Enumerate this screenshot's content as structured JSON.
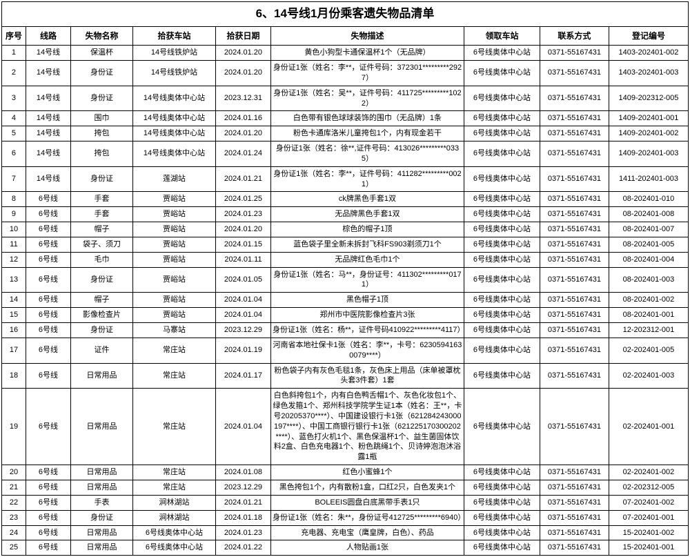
{
  "title": "6、14号线1月份乘客遗失物品清单",
  "columns": [
    "序号",
    "线路",
    "失物名称",
    "拾获车站",
    "拾获日期",
    "失物描述",
    "领取车站",
    "联系方式",
    "登记编号"
  ],
  "rows": [
    [
      "1",
      "14号线",
      "保温杯",
      "14号线铁炉站",
      "2024.01.20",
      "黄色小狗型卡通保温杯1个（无品牌）",
      "6号线奥体中心站",
      "0371-55167431",
      "1403-202401-002"
    ],
    [
      "2",
      "14号线",
      "身份证",
      "14号线铁炉站",
      "2024.01.20",
      "身份证1张（姓名：李**，证件号码：372301*********2927）",
      "6号线奥体中心站",
      "0371-55167431",
      "1403-202401-003"
    ],
    [
      "3",
      "14号线",
      "身份证",
      "14号线奥体中心站",
      "2023.12.31",
      "身份证1张（姓名：吴**，证件号码：411725*********1022）",
      "6号线奥体中心站",
      "0371-55167431",
      "1409-202312-005"
    ],
    [
      "4",
      "14号线",
      "围巾",
      "14号线奥体中心站",
      "2024.01.16",
      "白色带有银色球球装饰的围巾（无品牌）1条",
      "6号线奥体中心站",
      "0371-55167431",
      "1409-202401-001"
    ],
    [
      "5",
      "14号线",
      "挎包",
      "14号线奥体中心站",
      "2024.01.20",
      "粉色卡通库洛米儿童挎包1个，内有现金若干",
      "6号线奥体中心站",
      "0371-55167431",
      "1409-202401-002"
    ],
    [
      "6",
      "14号线",
      "挎包",
      "14号线奥体中心站",
      "2024.01.24",
      "身份证1张（姓名：徐**,证件号码：413026*********0335）",
      "6号线奥体中心站",
      "0371-55167431",
      "1409-202401-003"
    ],
    [
      "7",
      "14号线",
      "身份证",
      "莲湖站",
      "2024.01.21",
      "身份证1张（姓名：李**，证件号码：411282*********0021）",
      "6号线奥体中心站",
      "0371-55167431",
      "1411-202401-003"
    ],
    [
      "8",
      "6号线",
      "手套",
      "贾峪站",
      "2024.01.25",
      "ck牌黑色手套1双",
      "6号线奥体中心站",
      "0371-55167431",
      "08-202401-010"
    ],
    [
      "9",
      "6号线",
      "手套",
      "贾峪站",
      "2024.01.23",
      "无品牌黑色手套1双",
      "6号线奥体中心站",
      "0371-55167431",
      "08-202401-008"
    ],
    [
      "10",
      "6号线",
      "帽子",
      "贾峪站",
      "2024.01.20",
      "棕色的帽子1顶",
      "6号线奥体中心站",
      "0371-55167431",
      "08-202401-007"
    ],
    [
      "11",
      "6号线",
      "袋子、须刀",
      "贾峪站",
      "2024.01.15",
      "蓝色袋子里全新未拆封飞科FS903剃须刀1个",
      "6号线奥体中心站",
      "0371-55167431",
      "08-202401-005"
    ],
    [
      "12",
      "6号线",
      "毛巾",
      "贾峪站",
      "2024.01.11",
      "无品牌红色毛巾1个",
      "6号线奥体中心站",
      "0371-55167431",
      "08-202401-004"
    ],
    [
      "13",
      "6号线",
      "身份证",
      "贾峪站",
      "2024.01.05",
      "身份证1张（姓名：马**，身份证号：411302*********0171）",
      "6号线奥体中心站",
      "0371-55167431",
      "08-202401-003"
    ],
    [
      "14",
      "6号线",
      "帽子",
      "贾峪站",
      "2024.01.04",
      "黑色帽子1顶",
      "6号线奥体中心站",
      "0371-55167431",
      "08-202401-002"
    ],
    [
      "15",
      "6号线",
      "影像检查片",
      "贾峪站",
      "2024.01.04",
      "郑州市中医院影像检查片3张",
      "6号线奥体中心站",
      "0371-55167431",
      "08-202401-001"
    ],
    [
      "16",
      "6号线",
      "身份证",
      "马寨站",
      "2023.12.29",
      "身份证1张（姓名：杨**，证件号码410922*********4117）",
      "6号线奥体中心站",
      "0371-55167431",
      "12-202312-001"
    ],
    [
      "17",
      "6号线",
      "证件",
      "常庄站",
      "2024.01.19",
      "河南省本地社保卡1张（姓名：李**，卡号：62305941630079****）",
      "6号线奥体中心站",
      "0371-55167431",
      "02-202401-005"
    ],
    [
      "18",
      "6号线",
      "日常用品",
      "常庄站",
      "2024.01.17",
      "粉色袋子内有灰色毛毯1条，灰色床上用品（床单被罩枕头套3件套）1套",
      "6号线奥体中心站",
      "0371-55167431",
      "02-202401-003"
    ],
    [
      "19",
      "6号线",
      "日常用品",
      "常庄站",
      "2024.01.04",
      "白色斜挎包1个，内有白色鸭舌帽1个、灰色化妆包1个、绿色发箍1个、郑州科技学院学生证1本（姓名：王**，卡号20205370****）、中国建设银行卡1张（621284243000197****）、中国工商银行银行卡1张（621225170300202****）、蓝色打火机1个、黑色保温杯1个、益生菌固体饮料2盒、白色充电器1个、粉色跳绳1个、贝诗婷泡泡沐浴露1瓶",
      "6号线奥体中心站",
      "0371-55167431",
      "02-202401-001"
    ],
    [
      "20",
      "6号线",
      "日常用品",
      "常庄站",
      "2024.01.08",
      "红色小蜜蜂1个",
      "6号线奥体中心站",
      "0371-55167431",
      "02-202401-002"
    ],
    [
      "21",
      "6号线",
      "日常用品",
      "常庄站",
      "2023.12.29",
      "黑色挎包1个，内有散粉1盒，口红2只，白色发夹1个",
      "6号线奥体中心站",
      "0371-55167431",
      "02-202312-005"
    ],
    [
      "22",
      "6号线",
      "手表",
      "涧林湖站",
      "2024.01.21",
      "BOLEEIS圆盘白底黑带手表1只",
      "6号线奥体中心站",
      "0371-55167431",
      "07-202401-002"
    ],
    [
      "23",
      "6号线",
      "身份证",
      "涧林湖站",
      "2024.01.18",
      "身份证1张（姓名：朱**，身份证号412725*********6940）",
      "6号线奥体中心站",
      "0371-55167431",
      "07-202401-001"
    ],
    [
      "24",
      "6号线",
      "日常用品",
      "6号线奥体中心站",
      "2024.01.23",
      "充电器、充电宝（鹰皇牌，白色）、药品",
      "6号线奥体中心站",
      "0371-55167431",
      "15-202401-002"
    ],
    [
      "25",
      "6号线",
      "日常用品",
      "6号线奥体中心站",
      "2024.01.22",
      "人物贴画1张",
      "6号线奥体中心站",
      "0371-55167431",
      "15-202401-001"
    ]
  ]
}
